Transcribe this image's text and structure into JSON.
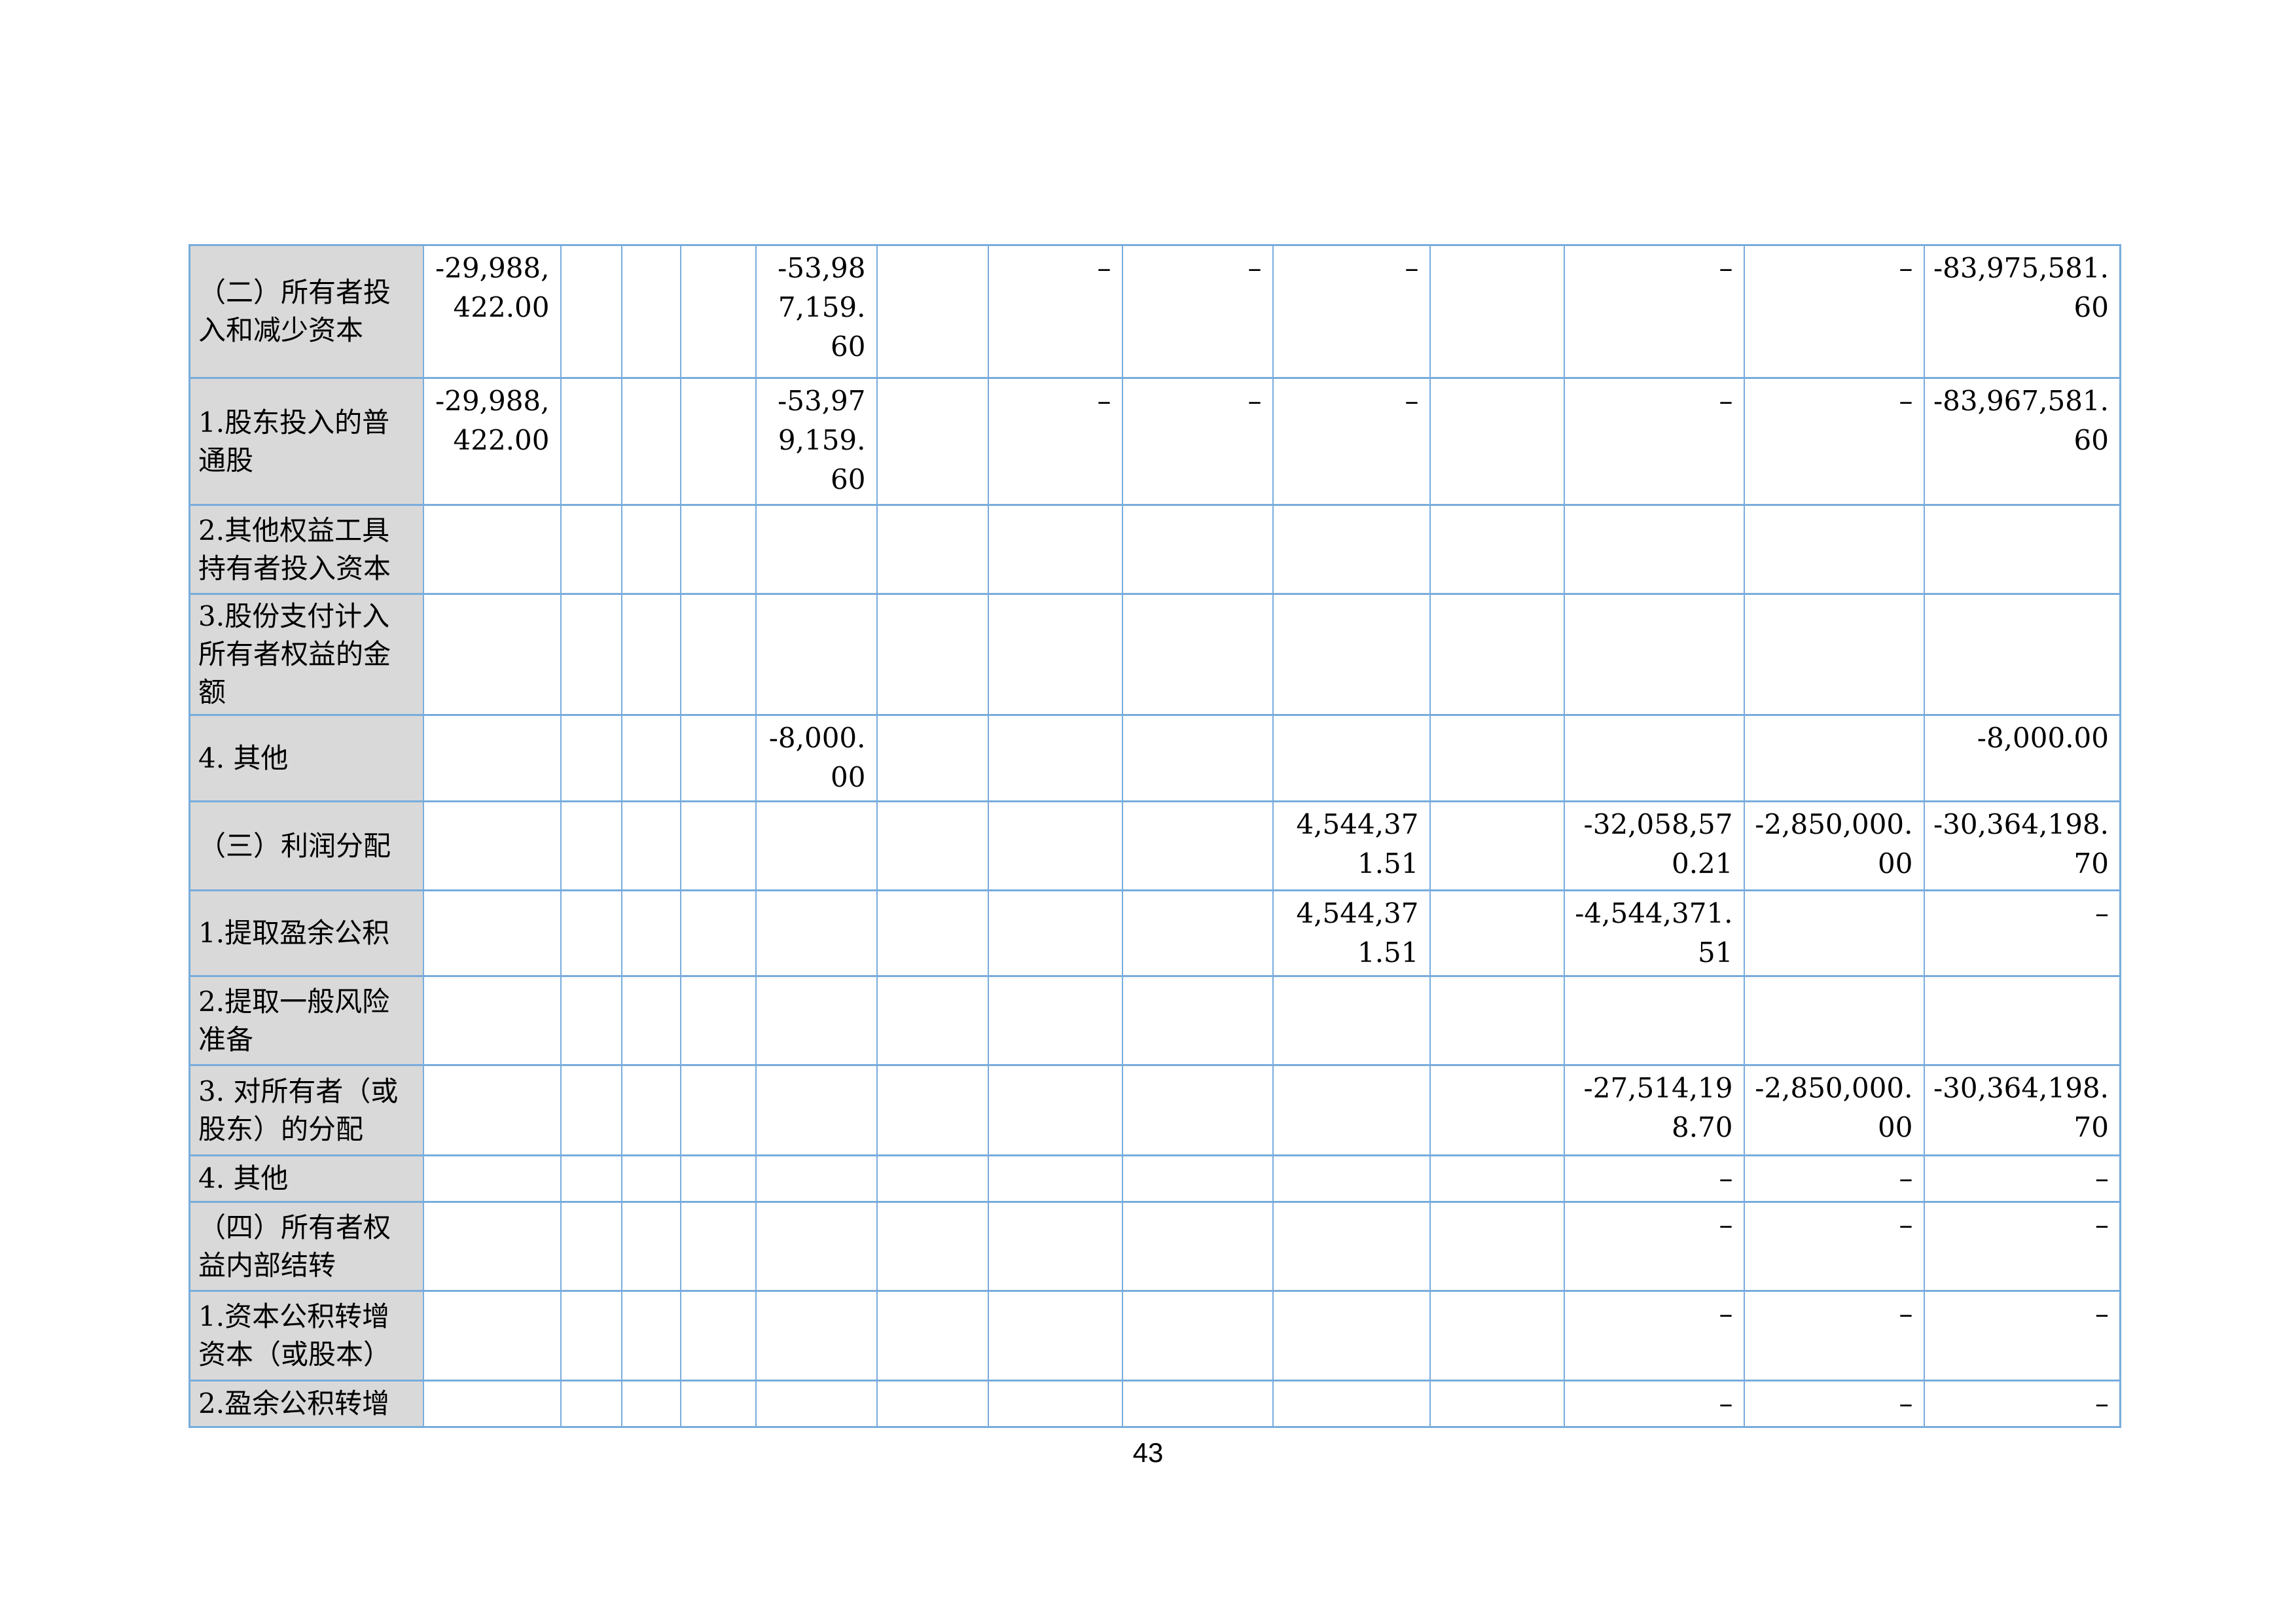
{
  "page": {
    "number": "43"
  },
  "colors": {
    "table_border": "#78acdc",
    "label_background": "#d9d9d9",
    "text": "#000000",
    "page_background": "#ffffff"
  },
  "table": {
    "description": "statement-of-changes-in-owners-equity-continuation",
    "rows": [
      {
        "label": "（二）所有者投入和减少资本",
        "cells": [
          "-29,988,422.00",
          "",
          "",
          "",
          "-53,987,159.60",
          "",
          "–",
          "–",
          "–",
          "",
          "–",
          "–",
          "-83,975,581.60"
        ]
      },
      {
        "label": "1.股东投入的普通股",
        "cells": [
          "-29,988,422.00",
          "",
          "",
          "",
          "-53,979,159.60",
          "",
          "–",
          "–",
          "–",
          "",
          "–",
          "–",
          "-83,967,581.60"
        ]
      },
      {
        "label": "2.其他权益工具持有者投入资本",
        "cells": [
          "",
          "",
          "",
          "",
          "",
          "",
          "",
          "",
          "",
          "",
          "",
          "",
          ""
        ]
      },
      {
        "label": "3.股份支付计入所有者权益的金额",
        "cells": [
          "",
          "",
          "",
          "",
          "",
          "",
          "",
          "",
          "",
          "",
          "",
          "",
          ""
        ]
      },
      {
        "label": "4. 其他",
        "cells": [
          "",
          "",
          "",
          "",
          "-8,000.00",
          "",
          "",
          "",
          "",
          "",
          "",
          "",
          "-8,000.00"
        ]
      },
      {
        "label": "（三）利润分配",
        "cells": [
          "",
          "",
          "",
          "",
          "",
          "",
          "",
          "",
          "4,544,371.51",
          "",
          "-32,058,570.21",
          "-2,850,000.00",
          "-30,364,198.70"
        ]
      },
      {
        "label": "1.提取盈余公积",
        "cells": [
          "",
          "",
          "",
          "",
          "",
          "",
          "",
          "",
          "4,544,371.51",
          "",
          "-4,544,371.51",
          "",
          "–"
        ]
      },
      {
        "label": "2.提取一般风险准备",
        "cells": [
          "",
          "",
          "",
          "",
          "",
          "",
          "",
          "",
          "",
          "",
          "",
          "",
          ""
        ]
      },
      {
        "label": "3. 对所有者（或股东）的分配",
        "cells": [
          "",
          "",
          "",
          "",
          "",
          "",
          "",
          "",
          "",
          "",
          "-27,514,198.70",
          "-2,850,000.00",
          "-30,364,198.70"
        ]
      },
      {
        "label": "4. 其他",
        "cells": [
          "",
          "",
          "",
          "",
          "",
          "",
          "",
          "",
          "",
          "",
          "–",
          "–",
          "–"
        ]
      },
      {
        "label": "（四）所有者权益内部结转",
        "cells": [
          "",
          "",
          "",
          "",
          "",
          "",
          "",
          "",
          "",
          "",
          "–",
          "–",
          "–"
        ]
      },
      {
        "label": "1.资本公积转增资本（或股本）",
        "cells": [
          "",
          "",
          "",
          "",
          "",
          "",
          "",
          "",
          "",
          "",
          "–",
          "–",
          "–"
        ]
      },
      {
        "label": "2.盈余公积转增",
        "cells": [
          "",
          "",
          "",
          "",
          "",
          "",
          "",
          "",
          "",
          "",
          "–",
          "–",
          "–"
        ]
      }
    ]
  }
}
